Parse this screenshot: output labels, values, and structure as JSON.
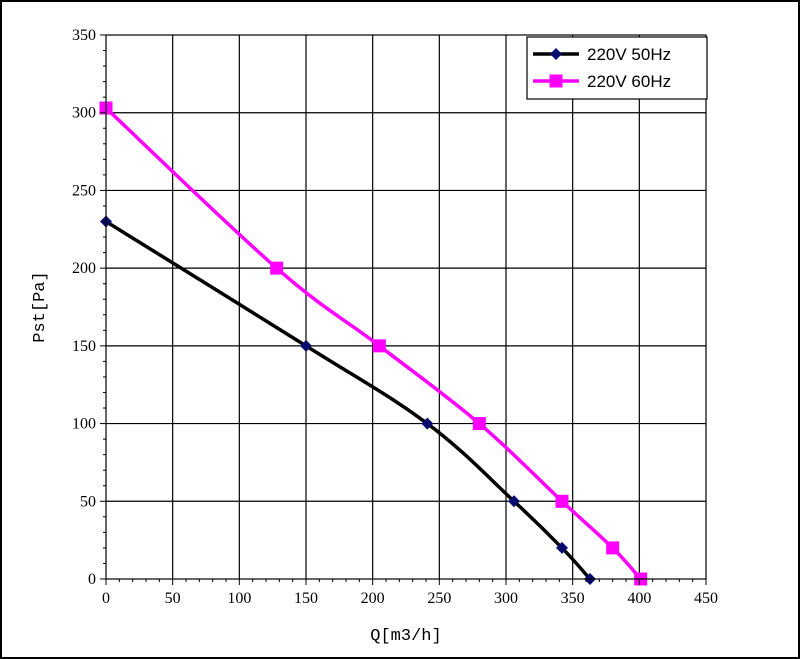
{
  "chart_data": {
    "type": "line",
    "xlabel": "Q[m3/h]",
    "ylabel": "Pst[Pa]",
    "xlim": [
      0,
      450
    ],
    "ylim": [
      0,
      350
    ],
    "x_ticks": [
      0,
      50,
      100,
      150,
      200,
      250,
      300,
      350,
      400,
      450
    ],
    "y_ticks": [
      0,
      50,
      100,
      150,
      200,
      250,
      300,
      350
    ],
    "x_tick_labels": [
      "0",
      "50",
      "100",
      "150",
      "200",
      "250",
      "300",
      "350",
      "400",
      "450"
    ],
    "y_tick_labels": [
      "0",
      "50",
      "100",
      "150",
      "200",
      "250",
      "300",
      "350"
    ],
    "grid": true,
    "legend_position": "top-right",
    "series": [
      {
        "name": "220V 50Hz",
        "color": "#000000",
        "marker_color": "#0a0a6e",
        "marker": "diamond",
        "points": [
          [
            0,
            230
          ],
          [
            150,
            150
          ],
          [
            241,
            100
          ],
          [
            306,
            50
          ],
          [
            342,
            20
          ],
          [
            363,
            0
          ]
        ]
      },
      {
        "name": "220V 60Hz",
        "color": "#ff00ff",
        "marker_color": "#ff00ff",
        "marker": "square",
        "points": [
          [
            0,
            303
          ],
          [
            128,
            200
          ],
          [
            205,
            150
          ],
          [
            280,
            100
          ],
          [
            342,
            50
          ],
          [
            380,
            20
          ],
          [
            401,
            0
          ]
        ]
      }
    ]
  }
}
